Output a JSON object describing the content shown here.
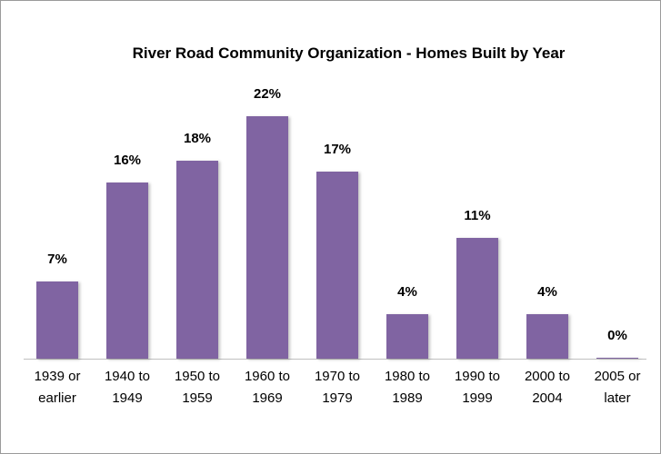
{
  "chart_data": {
    "type": "bar",
    "title": "River Road Community Organization - Homes Built by Year",
    "categories": [
      "1939 or earlier",
      "1940 to 1949",
      "1950 to 1959",
      "1960 to 1969",
      "1970 to 1979",
      "1980 to 1989",
      "1990 to 1999",
      "2000 to 2004",
      "2005 or later"
    ],
    "values": [
      7,
      16,
      18,
      22,
      17,
      4,
      11,
      4,
      0
    ],
    "value_labels": [
      "7%",
      "16%",
      "18%",
      "22%",
      "17%",
      "4%",
      "11%",
      "4%",
      "0%"
    ],
    "color": "#8064a2"
  }
}
